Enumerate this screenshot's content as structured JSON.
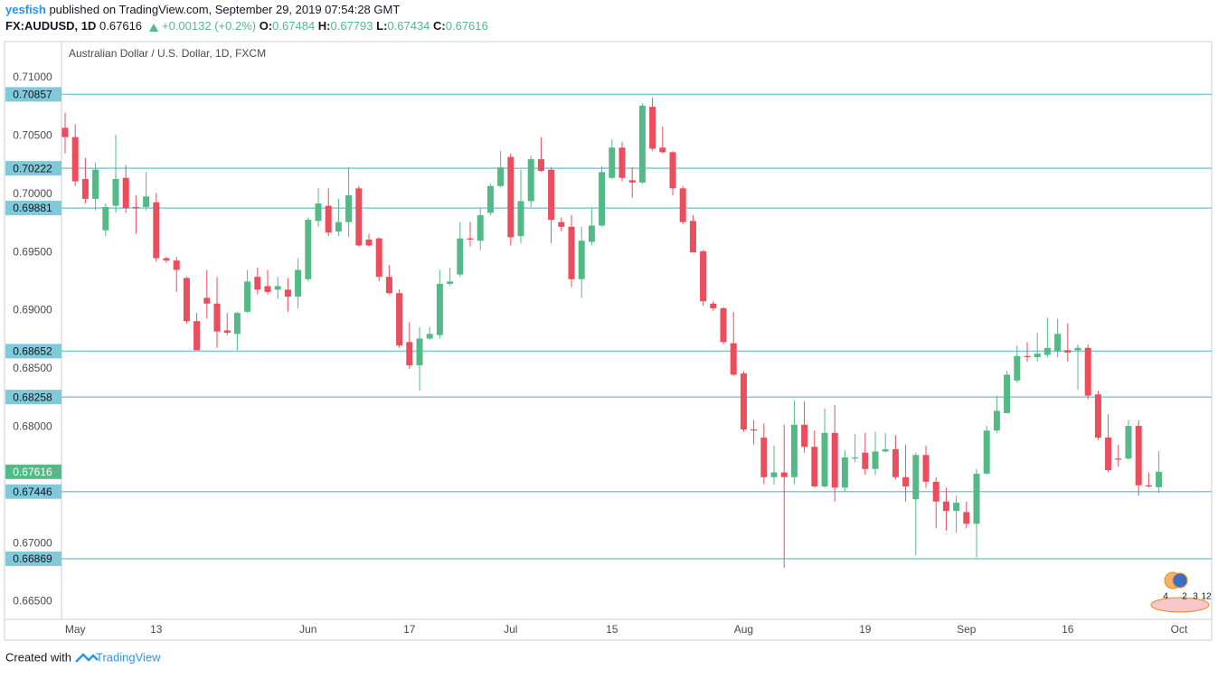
{
  "header": {
    "author": "yesfish",
    "published": "published on TradingView.com, September 29, 2019 07:54:28 GMT",
    "symbol": "FX:AUDUSD, 1D",
    "last": "0.67616",
    "change": "+0.00132 (+0.2%)",
    "fields": [
      {
        "label": "O:",
        "value": "0.67484"
      },
      {
        "label": "H:",
        "value": "0.67793"
      },
      {
        "label": "L:",
        "value": "0.67434"
      },
      {
        "label": "C:",
        "value": "0.67616"
      }
    ]
  },
  "footer": {
    "prefix": "Created with",
    "brand": "TradingView"
  },
  "chart_data": {
    "type": "candlestick",
    "title": "Australian Dollar / U.S. Dollar, 1D, FXCM",
    "up_color": "#53b987",
    "down_color": "#eb4d5c",
    "level_color": "#7fc9d8",
    "grid": true,
    "ylim": [
      0.66349,
      0.71085
    ],
    "yticks": [
      {
        "value": 0.71,
        "label": "0.71000"
      },
      {
        "value": 0.705,
        "label": "0.70500"
      },
      {
        "value": 0.7,
        "label": "0.70000"
      },
      {
        "value": 0.695,
        "label": "0.69500"
      },
      {
        "value": 0.69,
        "label": "0.69000"
      },
      {
        "value": 0.685,
        "label": "0.68500"
      },
      {
        "value": 0.68,
        "label": "0.68000"
      },
      {
        "value": 0.67,
        "label": "0.67000"
      },
      {
        "value": 0.665,
        "label": "0.66500"
      }
    ],
    "xticks": [
      {
        "value": 1,
        "label": "May"
      },
      {
        "value": 9,
        "label": "13"
      },
      {
        "value": 24,
        "label": "Jun"
      },
      {
        "value": 34,
        "label": "17"
      },
      {
        "value": 44,
        "label": "Jul"
      },
      {
        "value": 54,
        "label": "15"
      },
      {
        "value": 67,
        "label": "Aug"
      },
      {
        "value": 79,
        "label": "19"
      },
      {
        "value": 89,
        "label": "Sep"
      },
      {
        "value": 99,
        "label": "16"
      },
      {
        "value": 110,
        "label": "Oct"
      }
    ],
    "levels": [
      {
        "value": 0.70857,
        "label": "0.70857"
      },
      {
        "value": 0.70222,
        "label": "0.70222"
      },
      {
        "value": 0.69881,
        "label": "0.69881"
      },
      {
        "value": 0.68652,
        "label": "0.68652"
      },
      {
        "value": 0.68258,
        "label": "0.68258"
      },
      {
        "value": 0.67446,
        "label": "0.67446"
      },
      {
        "value": 0.66869,
        "label": "0.66869"
      }
    ],
    "current_price": {
      "value": 0.67616,
      "label": "0.67616"
    },
    "events": [
      "4",
      "2",
      "3",
      "12"
    ],
    "open": [
      0.7057,
      0.7049,
      0.7013,
      0.6996,
      0.6969,
      0.699,
      0.7014,
      0.6989,
      0.6989,
      0.6993,
      0.6945,
      0.6943,
      0.6928,
      0.6891,
      0.6911,
      0.6906,
      0.6883,
      0.688,
      0.6899,
      0.6929,
      0.6921,
      0.6918,
      0.6918,
      0.6912,
      0.6927,
      0.6977,
      0.699,
      0.6968,
      0.6976,
      0.7005,
      0.6961,
      0.6962,
      0.6929,
      0.6915,
      0.6873,
      0.6853,
      0.6876,
      0.6879,
      0.6923,
      0.6931,
      0.6962,
      0.696,
      0.6984,
      0.7007,
      0.7032,
      0.6964,
      0.6994,
      0.703,
      0.7021,
      0.6976,
      0.6972,
      0.6927,
      0.6959,
      0.6973,
      0.7014,
      0.704,
      0.7012,
      0.701,
      0.7075,
      0.704,
      0.7036,
      0.7005,
      0.6977,
      0.6951,
      0.6906,
      0.6902,
      0.6872,
      0.6846,
      0.6798,
      0.6791,
      0.6757,
      0.6761,
      0.6757,
      0.6802,
      0.6783,
      0.6749,
      0.6795,
      0.6748,
      0.6773,
      0.6778,
      0.6764,
      0.6779,
      0.6781,
      0.6757,
      0.6738,
      0.6776,
      0.6753,
      0.6736,
      0.6728,
      0.6727,
      0.6717,
      0.676,
      0.6797,
      0.6812,
      0.684,
      0.6861,
      0.686,
      0.6862,
      0.6865,
      0.6866,
      0.6866,
      0.6868,
      0.6828,
      0.6791,
      0.6773,
      0.6773,
      0.6801,
      0.675,
      0.67484
    ],
    "high": [
      0.707,
      0.706,
      0.7031,
      0.7027,
      0.6992,
      0.7051,
      0.7025,
      0.6999,
      0.7019,
      0.7001,
      0.6946,
      0.6946,
      0.6929,
      0.6898,
      0.6935,
      0.6929,
      0.6898,
      0.6899,
      0.6935,
      0.6937,
      0.6935,
      0.6929,
      0.6928,
      0.6945,
      0.698,
      0.7005,
      0.7005,
      0.6996,
      0.7023,
      0.7007,
      0.6966,
      0.6963,
      0.6939,
      0.6918,
      0.689,
      0.6886,
      0.6886,
      0.6935,
      0.6937,
      0.6976,
      0.6976,
      0.6988,
      0.7009,
      0.7037,
      0.7035,
      0.7021,
      0.7033,
      0.7049,
      0.7023,
      0.698,
      0.6982,
      0.6972,
      0.6988,
      0.7024,
      0.7047,
      0.7045,
      0.7023,
      0.7078,
      0.7083,
      0.7058,
      0.7037,
      0.7007,
      0.6982,
      0.6952,
      0.6908,
      0.6903,
      0.6899,
      0.6848,
      0.6806,
      0.6803,
      0.6784,
      0.6802,
      0.6823,
      0.6822,
      0.6797,
      0.6816,
      0.6819,
      0.678,
      0.6794,
      0.6795,
      0.6796,
      0.6795,
      0.6793,
      0.6785,
      0.6778,
      0.6784,
      0.6757,
      0.6748,
      0.6741,
      0.6736,
      0.6764,
      0.6801,
      0.6827,
      0.6848,
      0.687,
      0.6873,
      0.6881,
      0.6894,
      0.6893,
      0.6889,
      0.6871,
      0.6871,
      0.6831,
      0.6811,
      0.6785,
      0.6806,
      0.6806,
      0.6761,
      0.67793
    ],
    "low": [
      0.7035,
      0.7007,
      0.6992,
      0.6986,
      0.6964,
      0.6984,
      0.6984,
      0.6966,
      0.6986,
      0.6942,
      0.6941,
      0.6916,
      0.6889,
      0.6866,
      0.6893,
      0.6868,
      0.6879,
      0.6866,
      0.6898,
      0.6914,
      0.6914,
      0.691,
      0.6899,
      0.6902,
      0.6925,
      0.6972,
      0.6964,
      0.6964,
      0.6963,
      0.6955,
      0.6955,
      0.6925,
      0.6914,
      0.6868,
      0.685,
      0.6831,
      0.6875,
      0.6876,
      0.6921,
      0.6929,
      0.6955,
      0.6952,
      0.6982,
      0.7006,
      0.6956,
      0.6958,
      0.6989,
      0.7019,
      0.6958,
      0.6968,
      0.692,
      0.6911,
      0.6956,
      0.6972,
      0.7013,
      0.7011,
      0.6997,
      0.7009,
      0.7037,
      0.7035,
      0.6999,
      0.6974,
      0.695,
      0.6904,
      0.69,
      0.6871,
      0.6844,
      0.6796,
      0.6785,
      0.6751,
      0.6751,
      0.6679,
      0.6751,
      0.6778,
      0.6748,
      0.6748,
      0.6736,
      0.6744,
      0.677,
      0.6759,
      0.6759,
      0.6778,
      0.6755,
      0.6736,
      0.669,
      0.6748,
      0.6713,
      0.6711,
      0.6709,
      0.6713,
      0.6688,
      0.6759,
      0.6795,
      0.6812,
      0.6838,
      0.6856,
      0.6856,
      0.686,
      0.686,
      0.6856,
      0.6832,
      0.6824,
      0.6789,
      0.6761,
      0.6766,
      0.6772,
      0.6741,
      0.6748,
      0.67434
    ],
    "close": [
      0.7049,
      0.7011,
      0.6996,
      0.7021,
      0.6989,
      0.7013,
      0.6988,
      0.6988,
      0.6998,
      0.6945,
      0.6943,
      0.6935,
      0.6891,
      0.6866,
      0.6906,
      0.6882,
      0.6881,
      0.6898,
      0.6925,
      0.6918,
      0.6916,
      0.6921,
      0.6912,
      0.6935,
      0.6978,
      0.6992,
      0.6967,
      0.6976,
      0.6999,
      0.6956,
      0.6956,
      0.6929,
      0.6915,
      0.687,
      0.6853,
      0.6876,
      0.688,
      0.6923,
      0.6925,
      0.6962,
      0.6961,
      0.6982,
      0.7007,
      0.7023,
      0.6963,
      0.6994,
      0.703,
      0.702,
      0.6978,
      0.6972,
      0.6927,
      0.696,
      0.6973,
      0.7019,
      0.704,
      0.7014,
      0.701,
      0.7076,
      0.7039,
      0.7036,
      0.7005,
      0.6976,
      0.695,
      0.6908,
      0.6902,
      0.6873,
      0.6845,
      0.6798,
      0.6797,
      0.6757,
      0.6761,
      0.6757,
      0.6802,
      0.6783,
      0.6749,
      0.6795,
      0.6748,
      0.6774,
      0.6774,
      0.6764,
      0.6779,
      0.6781,
      0.6757,
      0.6749,
      0.6776,
      0.6753,
      0.6736,
      0.6728,
      0.6735,
      0.6717,
      0.676,
      0.6797,
      0.6814,
      0.6845,
      0.6861,
      0.686,
      0.6863,
      0.6868,
      0.688,
      0.6864,
      0.6868,
      0.6827,
      0.6791,
      0.6763,
      0.6772,
      0.6801,
      0.675,
      0.6749,
      0.67616
    ]
  }
}
